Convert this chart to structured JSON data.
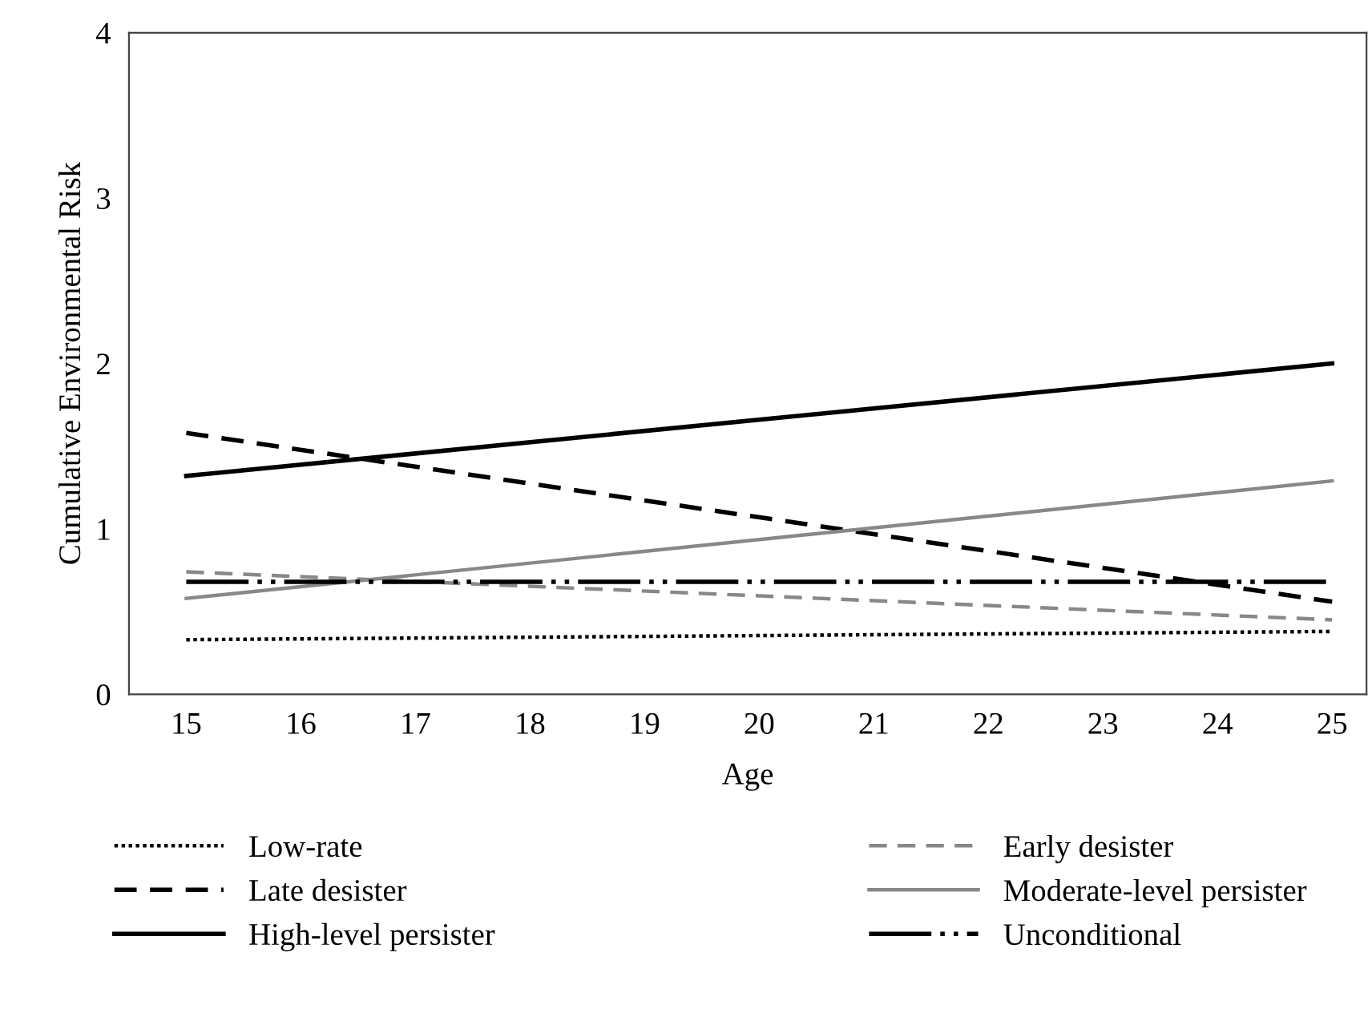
{
  "chart_data": {
    "type": "line",
    "xlabel": "Age",
    "ylabel": "Cumulative Environmental Risk",
    "x": [
      15,
      25
    ],
    "xlim": [
      14.5,
      25.3
    ],
    "xticks": [
      15,
      16,
      17,
      18,
      19,
      20,
      21,
      22,
      23,
      24,
      25
    ],
    "ylim": [
      0,
      4
    ],
    "yticks": [
      0,
      1,
      2,
      3,
      4
    ],
    "grid": false,
    "legend": "bottom",
    "marker": "none",
    "series": [
      {
        "name": "Low-rate",
        "color": "#000000",
        "line_style": "dotted",
        "values": [
          0.33,
          0.38
        ]
      },
      {
        "name": "Early desister",
        "color": "#888888",
        "line_style": "dashed",
        "values": [
          0.74,
          0.45
        ]
      },
      {
        "name": "Late desister",
        "color": "#000000",
        "line_style": "dashed",
        "values": [
          1.58,
          0.56
        ]
      },
      {
        "name": "Moderate-level persister",
        "color": "#888888",
        "line_style": "solid",
        "values": [
          0.58,
          1.29
        ]
      },
      {
        "name": "High-level persister",
        "color": "#000000",
        "line_style": "solid",
        "values": [
          1.32,
          2.0
        ]
      },
      {
        "name": "Unconditional",
        "color": "#000000",
        "line_style": "dashdotdot",
        "values": [
          0.68,
          0.68
        ]
      }
    ]
  }
}
